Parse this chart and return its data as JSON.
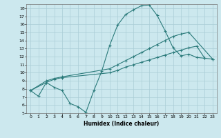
{
  "xlabel": "Humidex (Indice chaleur)",
  "bg_color": "#cce8ee",
  "grid_color": "#aacdd6",
  "line_color": "#2a7a7a",
  "xlim": [
    -0.5,
    23.5
  ],
  "ylim": [
    5,
    18.5
  ],
  "xticks": [
    0,
    1,
    2,
    3,
    4,
    5,
    6,
    7,
    8,
    9,
    10,
    11,
    12,
    13,
    14,
    15,
    16,
    17,
    18,
    19,
    20,
    21,
    22,
    23
  ],
  "yticks": [
    5,
    6,
    7,
    8,
    9,
    10,
    11,
    12,
    13,
    14,
    15,
    16,
    17,
    18
  ],
  "l1x": [
    0,
    1,
    2,
    3,
    4,
    5,
    6,
    7,
    8,
    9,
    10,
    11,
    12,
    13,
    14,
    15,
    16,
    17,
    18,
    19,
    20,
    21,
    22
  ],
  "l1y": [
    7.8,
    7.1,
    8.8,
    8.2,
    7.8,
    6.2,
    5.8,
    5.1,
    7.8,
    10.2,
    13.4,
    15.9,
    17.2,
    17.8,
    18.3,
    18.4,
    17.1,
    15.2,
    13.1,
    12.1,
    12.3,
    11.9,
    11.8
  ],
  "l2x": [
    0,
    2,
    3,
    4,
    10,
    11,
    12,
    13,
    14,
    15,
    16,
    17,
    18,
    19,
    20,
    23
  ],
  "l2y": [
    7.8,
    9.0,
    9.3,
    9.5,
    10.5,
    11.0,
    11.5,
    12.0,
    12.5,
    13.0,
    13.5,
    14.0,
    14.5,
    14.8,
    15.0,
    11.7
  ],
  "l3x": [
    0,
    2,
    3,
    4,
    10,
    11,
    12,
    13,
    14,
    15,
    16,
    17,
    18,
    19,
    20,
    21,
    22,
    23
  ],
  "l3y": [
    7.8,
    8.8,
    9.2,
    9.4,
    10.0,
    10.3,
    10.7,
    11.0,
    11.3,
    11.6,
    11.9,
    12.2,
    12.5,
    12.8,
    13.1,
    13.3,
    11.8,
    11.7
  ]
}
